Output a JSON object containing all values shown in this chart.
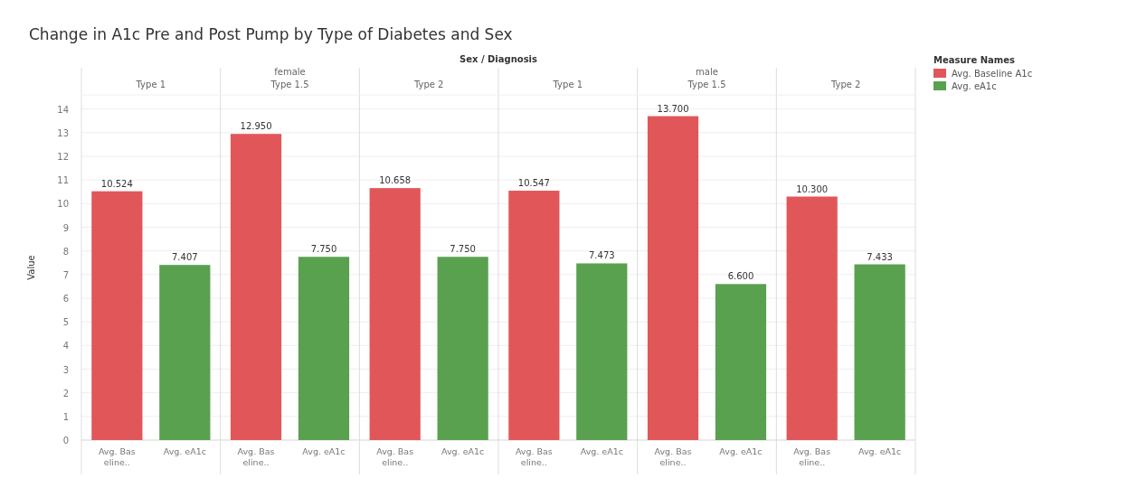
{
  "chart_data": {
    "type": "bar",
    "title": "Change in A1c Pre and Post Pump by Type of Diabetes and Sex",
    "xlabel": "Sex / Diagnosis",
    "ylabel": "Value",
    "legend_title": "Measure Names",
    "categories": [
      "Type 1",
      "Type 1.5",
      "Type 2",
      "Type 1",
      "Type 1.5",
      "Type 2"
    ],
    "series": [
      {
        "name": "Avg. Baseline A1c",
        "color": "#e15759",
        "values": [
          10.524,
          12.95,
          10.658,
          10.547,
          13.7,
          10.3
        ],
        "value_labels": [
          "10.524",
          "12.950",
          "10.658",
          "10.547",
          "13.700",
          "10.300"
        ]
      },
      {
        "name": "Avg. eA1c",
        "color": "#59a14f",
        "values": [
          7.407,
          7.75,
          7.75,
          7.473,
          6.6,
          7.433
        ],
        "value_labels": [
          "7.407",
          "7.750",
          "7.750",
          "7.473",
          "6.600",
          "7.433"
        ]
      }
    ],
    "annotations": [
      "female",
      "male",
      "Avg. Bas eline..",
      "Avg. eA1c"
    ],
    "ylim": [
      0,
      14.6
    ],
    "yticks": [
      0,
      1,
      2,
      3,
      4,
      5,
      6,
      7,
      8,
      9,
      10,
      11,
      12,
      13,
      14
    ],
    "grid": "y",
    "legend": "top right"
  }
}
